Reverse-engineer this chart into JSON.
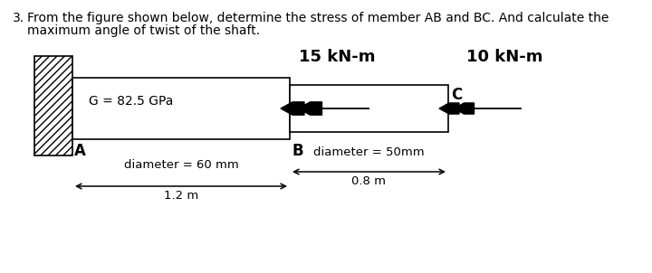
{
  "title_num": "3.",
  "title_text": "From the figure shown below, determine the stress of member AB and BC. And calculate the\nmaximum angle of twist of the shaft.",
  "label_G": "G = 82.5 GPa",
  "label_torque_B": "15 kN-m",
  "label_torque_C": "10 kN-m",
  "label_A": "A",
  "label_B": "B",
  "label_C": "C",
  "label_diam_AB": "diameter = 60 mm",
  "label_diam_BC": "diameter = 50mm",
  "label_len_AB": "1.2 m",
  "label_len_BC": "0.8 m",
  "bg_color": "#ffffff"
}
